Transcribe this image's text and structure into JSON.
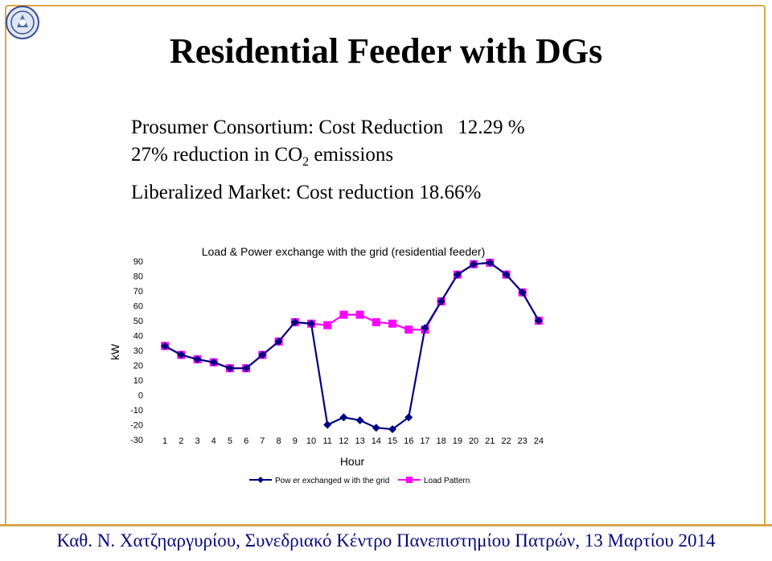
{
  "slide": {
    "title": "Residential Feeder with DGs",
    "line1_a": "Prosumer Consortium: Cost Reduction",
    "line1_b": "12.29 %",
    "line2_a": "27% reduction in CO",
    "line2_sub": "2",
    "line2_b": "emissions",
    "line3": "Liberalized Market: Cost reduction 18.66%",
    "footer": "Καθ. Ν. Χατζηαργυρίου, Συνεδριακό Κέντρο Πανεπιστημίου Πατρών, 13 Μαρτίου 2014"
  },
  "chart_data": {
    "type": "line",
    "title": "Load & Power exchange with the grid (residential feeder)",
    "xlabel": "Hour",
    "ylabel": "kW",
    "categories": [
      "1",
      "2",
      "3",
      "4",
      "5",
      "6",
      "7",
      "8",
      "9",
      "10",
      "11",
      "12",
      "13",
      "14",
      "15",
      "16",
      "17",
      "18",
      "19",
      "20",
      "21",
      "22",
      "23",
      "24"
    ],
    "ylim": [
      -30,
      90
    ],
    "yticks": [
      90,
      80,
      70,
      60,
      50,
      40,
      30,
      20,
      10,
      0,
      -10,
      -20,
      -30
    ],
    "legend_position": "bottom",
    "series": [
      {
        "name": "Pow er exchanged w ith the grid",
        "color": "#000080",
        "marker": "diamond",
        "values": [
          33,
          27,
          24,
          22,
          18,
          18,
          27,
          36,
          49,
          48,
          -20,
          -15,
          -17,
          -22,
          -23,
          -15,
          45,
          63,
          81,
          88,
          89,
          81,
          69,
          50
        ]
      },
      {
        "name": "Load Pattern",
        "color": "#ff00ff",
        "marker": "square",
        "values": [
          33,
          27,
          24,
          22,
          18,
          18,
          27,
          36,
          49,
          48,
          47,
          54,
          54,
          49,
          48,
          44,
          44,
          63,
          81,
          88,
          89,
          81,
          69,
          50
        ]
      }
    ]
  }
}
